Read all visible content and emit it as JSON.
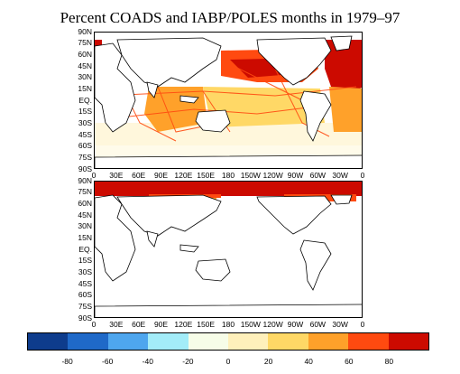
{
  "title": "Percent COADS and IABP/POLES months in 1979–97",
  "latitude_labels": [
    "90N",
    "75N",
    "60N",
    "45N",
    "30N",
    "15N",
    "EQ.",
    "15S",
    "30S",
    "45S",
    "60S",
    "75S",
    "90S"
  ],
  "longitude_labels": [
    "0",
    "30E",
    "60E",
    "90E",
    "120E",
    "150E",
    "180",
    "150W",
    "120W",
    "90W",
    "60W",
    "30W",
    "0"
  ],
  "colorbar": {
    "colors": [
      "#0e3c8c",
      "#1f69c8",
      "#4ea6ee",
      "#a3ecf8",
      "#f7fde8",
      "#fff0bb",
      "#ffd866",
      "#ffa12a",
      "#ff4a10",
      "#cc0a00"
    ],
    "labels": [
      "-80",
      "-60",
      "-40",
      "-20",
      "0",
      "20",
      "40",
      "60",
      "80"
    ]
  },
  "panels": [
    {
      "name": "top-panel",
      "description": "COADS coverage"
    },
    {
      "name": "bottom-panel",
      "description": "IABP/POLES coverage"
    }
  ]
}
